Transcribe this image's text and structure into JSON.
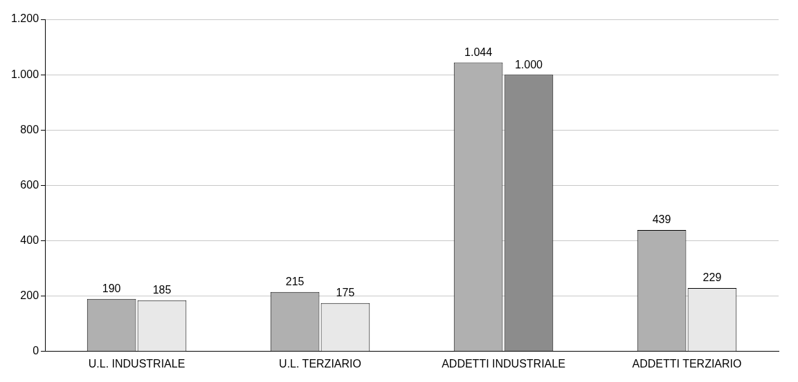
{
  "chart_data": {
    "type": "bar",
    "categories": [
      "U.L. INDUSTRIALE",
      "U.L. TERZIARIO",
      "ADDETTI INDUSTRIALE",
      "ADDETTI TERZIARIO"
    ],
    "series": [
      {
        "colors": [
          "#b0b0b0",
          "#b0b0b0",
          "#b0b0b0",
          "#b0b0b0"
        ],
        "values": [
          190,
          215,
          1044,
          439
        ],
        "value_labels": [
          "190",
          "215",
          "1.044",
          "439"
        ]
      },
      {
        "colors": [
          "#e8e8e8",
          "#e8e8e8",
          "#8c8c8c",
          "#e8e8e8"
        ],
        "values": [
          185,
          175,
          1000,
          229
        ],
        "value_labels": [
          "185",
          "175",
          "1.000",
          "229"
        ]
      }
    ],
    "ylim": [
      0,
      1200
    ],
    "yticks": [
      0,
      200,
      400,
      600,
      800,
      {
        "value": 1000,
        "label": "1.000"
      },
      {
        "value": 1200,
        "label": "1.200"
      }
    ],
    "grid": "y",
    "legend": false
  }
}
